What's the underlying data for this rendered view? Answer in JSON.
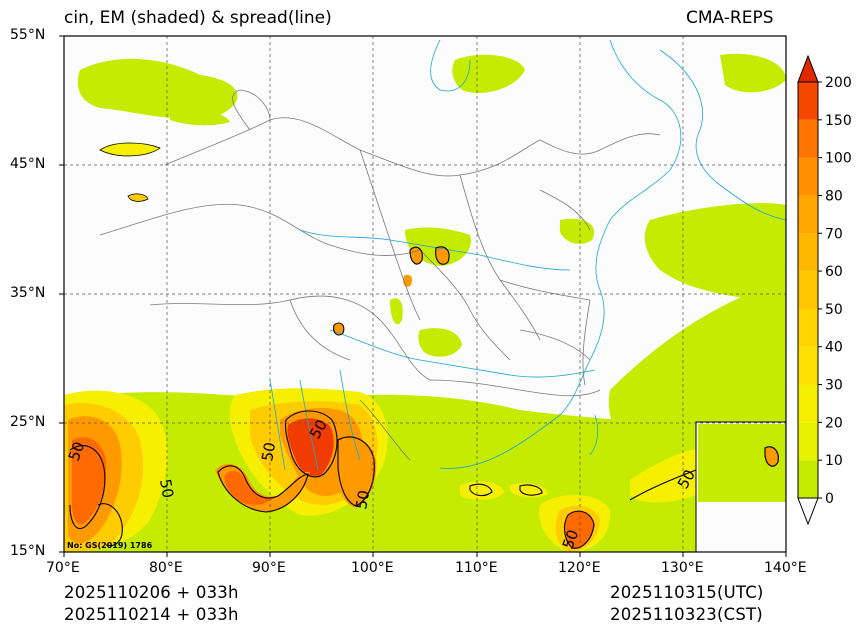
{
  "header": {
    "title_left": "cin, EM (shaded) & spread(line)",
    "title_right": "CMA-REPS"
  },
  "map": {
    "lon_range": [
      70,
      140
    ],
    "lat_range": [
      15,
      55
    ],
    "lat_labels": [
      "55°N",
      "45°N",
      "35°N",
      "25°N",
      "15°N"
    ],
    "lon_labels": [
      "70°E",
      "80°E",
      "90°E",
      "100°E",
      "110°E",
      "120°E",
      "130°E",
      "140°E"
    ],
    "contour_label": "50",
    "inset_note": "No: GS(2019) 1786",
    "colors": {
      "land": "#fcfcfc",
      "light": "#c5ec00",
      "yellow": "#f6ef00",
      "gold": "#ffcc00",
      "orange": "#ff9900",
      "darkorange": "#ff6a00",
      "red": "#f03c00",
      "border": "#7a7a7a",
      "river": "#1aa7d4",
      "contour": "#000000"
    }
  },
  "colorbar": {
    "levels": [
      "0",
      "10",
      "20",
      "30",
      "40",
      "50",
      "60",
      "70",
      "80",
      "100",
      "150",
      "200"
    ],
    "colors": [
      "#c5ec00",
      "#e6f200",
      "#f6ef00",
      "#fde000",
      "#ffd400",
      "#ffc600",
      "#ffb700",
      "#ffa600",
      "#ff9100",
      "#ff7300",
      "#f44800"
    ]
  },
  "footer": {
    "init_utc": "2025110206  +  033h",
    "init_cst": "2025110214  +  033h",
    "valid_utc": "2025110315(UTC)",
    "valid_cst": "2025110323(CST)"
  }
}
